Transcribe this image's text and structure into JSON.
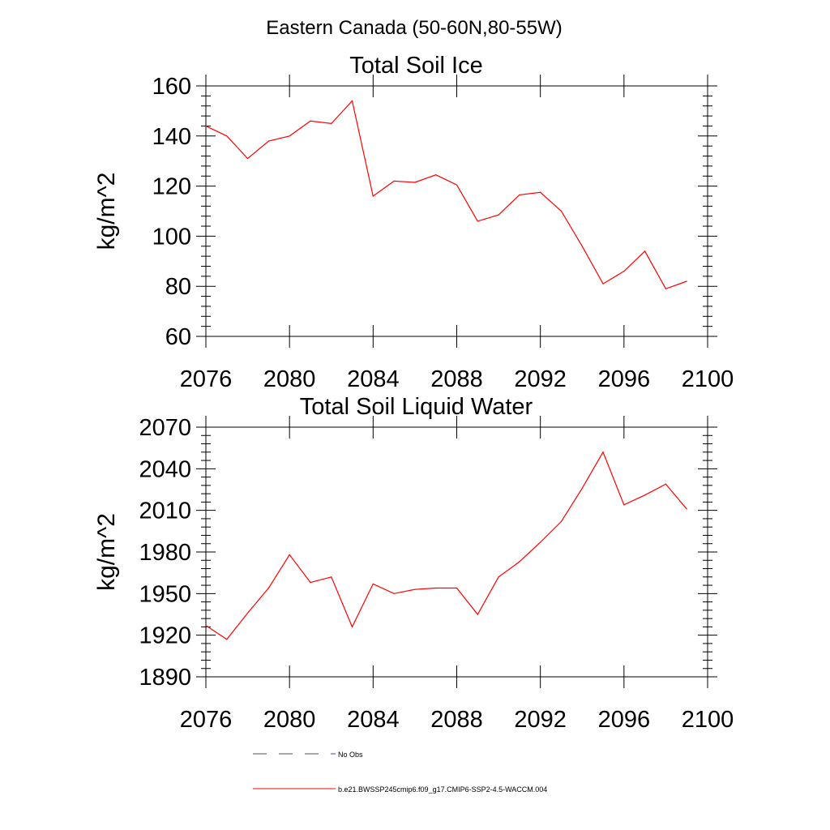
{
  "figure_title": "Eastern Canada (50-60N,80-55W)",
  "legend": [
    {
      "label": "No Obs",
      "style": "dashed",
      "color": "#4a4a8a"
    },
    {
      "label": "b.e21.BWSSP245cmip6.f09_g17.CMIP6-SSP2-4.5-WACCM.004",
      "style": "solid",
      "color": "#ff0000"
    }
  ],
  "chart_data": [
    {
      "type": "line",
      "title": "Total Soil Ice",
      "ylabel": "kg/m^2",
      "xlabel": "",
      "xlim": [
        2076,
        2100
      ],
      "ylim": [
        60,
        160
      ],
      "xticks": [
        2076,
        2080,
        2084,
        2088,
        2092,
        2096,
        2100
      ],
      "yticks": [
        60,
        80,
        100,
        120,
        140,
        160
      ],
      "grid": false,
      "series": [
        {
          "name": "b.e21.BWSSP245cmip6.f09_g17.CMIP6-SSP2-4.5-WACCM.004",
          "color": "#ff0000",
          "x": [
            2076,
            2077,
            2078,
            2079,
            2080,
            2081,
            2082,
            2083,
            2084,
            2085,
            2086,
            2087,
            2088,
            2089,
            2090,
            2091,
            2092,
            2093,
            2094,
            2095,
            2096,
            2097,
            2098,
            2099
          ],
          "y": [
            144,
            140,
            131,
            138,
            140,
            146,
            145,
            154,
            116,
            122,
            121.5,
            124.5,
            120.5,
            106,
            108.5,
            116.5,
            117.5,
            110,
            96,
            81,
            86,
            94,
            79,
            82
          ]
        }
      ]
    },
    {
      "type": "line",
      "title": "Total Soil Liquid Water",
      "ylabel": "kg/m^2",
      "xlabel": "",
      "xlim": [
        2076,
        2100
      ],
      "ylim": [
        1890,
        2070
      ],
      "xticks": [
        2076,
        2080,
        2084,
        2088,
        2092,
        2096,
        2100
      ],
      "yticks": [
        1890,
        1920,
        1950,
        1980,
        2010,
        2040,
        2070
      ],
      "grid": false,
      "series": [
        {
          "name": "b.e21.BWSSP245cmip6.f09_g17.CMIP6-SSP2-4.5-WACCM.004",
          "color": "#ff0000",
          "x": [
            2076,
            2077,
            2078,
            2079,
            2080,
            2081,
            2082,
            2083,
            2084,
            2085,
            2086,
            2087,
            2088,
            2089,
            2090,
            2091,
            2092,
            2093,
            2094,
            2095,
            2096,
            2097,
            2098,
            2099
          ],
          "y": [
            1927,
            1917,
            1936,
            1954,
            1978,
            1958,
            1962,
            1926,
            1957,
            1950,
            1953,
            1954,
            1954,
            1935,
            1962,
            1973,
            1987,
            2002,
            2026,
            2052,
            2014,
            2021,
            2029,
            2011
          ]
        }
      ]
    }
  ]
}
